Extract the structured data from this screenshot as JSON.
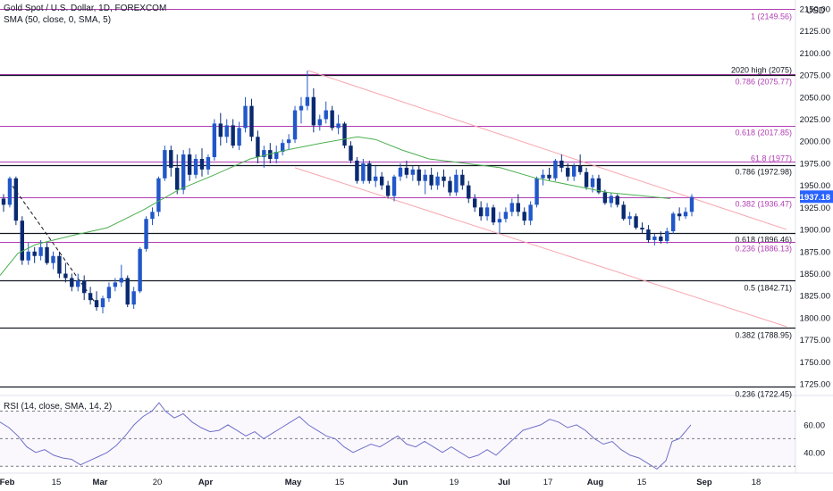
{
  "header": {
    "symbol_title": "Gold Spot / U.S. Dollar, 1D, FOREXCOM",
    "indicator_label": "SMA (50, close, 0, SMA, 5)",
    "currency": "USD"
  },
  "rsi_panel": {
    "label": "RSI (14, close, SMA, 14, 2)",
    "ticks": [
      "60.00",
      "40.00"
    ]
  },
  "colors": {
    "up_candle": "#2157c8",
    "down_candle": "#0a2a70",
    "sma": "#4caf50",
    "fib_level": "#b23eb5",
    "fib_label": "#b23eb5",
    "horizontal_level": "#131722",
    "channel": "#f7a6ae",
    "rsi": "#6f6fc9",
    "price_badge": "#2962ff"
  },
  "chart_data": {
    "type": "candlestick",
    "title": "Gold Spot / U.S. Dollar, 1D, FOREXCOM",
    "ylabel": "USD",
    "ylim": [
      1715,
      2160
    ],
    "y_ticks": [
      2150,
      2125,
      2100,
      2075,
      2050,
      2025,
      2000,
      1975,
      1950,
      1925,
      1900,
      1875,
      1850,
      1825,
      1800,
      1775,
      1750,
      1725
    ],
    "x_labels": [
      "Feb",
      "15",
      "Mar",
      "20",
      "Apr",
      "May",
      "15",
      "Jun",
      "19",
      "Jul",
      "17",
      "Aug",
      "15",
      "Sep",
      "18"
    ],
    "last_price": "1937.18",
    "candles": [
      {
        "o": 1935,
        "h": 1940,
        "l": 1920,
        "c": 1928
      },
      {
        "o": 1928,
        "h": 1960,
        "l": 1925,
        "c": 1958
      },
      {
        "o": 1958,
        "h": 1960,
        "l": 1905,
        "c": 1910
      },
      {
        "o": 1910,
        "h": 1915,
        "l": 1860,
        "c": 1865
      },
      {
        "o": 1865,
        "h": 1885,
        "l": 1860,
        "c": 1875
      },
      {
        "o": 1875,
        "h": 1880,
        "l": 1862,
        "c": 1870
      },
      {
        "o": 1870,
        "h": 1888,
        "l": 1865,
        "c": 1880
      },
      {
        "o": 1880,
        "h": 1885,
        "l": 1860,
        "c": 1862
      },
      {
        "o": 1862,
        "h": 1875,
        "l": 1855,
        "c": 1870
      },
      {
        "o": 1870,
        "h": 1875,
        "l": 1845,
        "c": 1850
      },
      {
        "o": 1850,
        "h": 1862,
        "l": 1840,
        "c": 1845
      },
      {
        "o": 1845,
        "h": 1850,
        "l": 1830,
        "c": 1835
      },
      {
        "o": 1835,
        "h": 1850,
        "l": 1830,
        "c": 1842
      },
      {
        "o": 1842,
        "h": 1848,
        "l": 1820,
        "c": 1828
      },
      {
        "o": 1828,
        "h": 1835,
        "l": 1815,
        "c": 1820
      },
      {
        "o": 1820,
        "h": 1830,
        "l": 1808,
        "c": 1812
      },
      {
        "o": 1812,
        "h": 1825,
        "l": 1805,
        "c": 1822
      },
      {
        "o": 1822,
        "h": 1840,
        "l": 1818,
        "c": 1835
      },
      {
        "o": 1835,
        "h": 1845,
        "l": 1830,
        "c": 1840
      },
      {
        "o": 1840,
        "h": 1860,
        "l": 1835,
        "c": 1845
      },
      {
        "o": 1845,
        "h": 1848,
        "l": 1812,
        "c": 1815
      },
      {
        "o": 1815,
        "h": 1835,
        "l": 1810,
        "c": 1830
      },
      {
        "o": 1830,
        "h": 1880,
        "l": 1828,
        "c": 1878
      },
      {
        "o": 1878,
        "h": 1915,
        "l": 1875,
        "c": 1912
      },
      {
        "o": 1912,
        "h": 1925,
        "l": 1905,
        "c": 1920
      },
      {
        "o": 1920,
        "h": 1960,
        "l": 1915,
        "c": 1958
      },
      {
        "o": 1958,
        "h": 1995,
        "l": 1955,
        "c": 1990
      },
      {
        "o": 1990,
        "h": 1995,
        "l": 1960,
        "c": 1970
      },
      {
        "o": 1970,
        "h": 1985,
        "l": 1940,
        "c": 1945
      },
      {
        "o": 1945,
        "h": 1990,
        "l": 1940,
        "c": 1985
      },
      {
        "o": 1985,
        "h": 1992,
        "l": 1955,
        "c": 1962
      },
      {
        "o": 1962,
        "h": 1985,
        "l": 1958,
        "c": 1980
      },
      {
        "o": 1980,
        "h": 1992,
        "l": 1960,
        "c": 1968
      },
      {
        "o": 1968,
        "h": 1985,
        "l": 1962,
        "c": 1982
      },
      {
        "o": 1982,
        "h": 2025,
        "l": 1978,
        "c": 2020
      },
      {
        "o": 2020,
        "h": 2032,
        "l": 1995,
        "c": 2005
      },
      {
        "o": 2005,
        "h": 2025,
        "l": 1998,
        "c": 2018
      },
      {
        "o": 2018,
        "h": 2025,
        "l": 1992,
        "c": 1995
      },
      {
        "o": 1995,
        "h": 2022,
        "l": 1990,
        "c": 2015
      },
      {
        "o": 2015,
        "h": 2050,
        "l": 2010,
        "c": 2040
      },
      {
        "o": 2040,
        "h": 2048,
        "l": 2000,
        "c": 2005
      },
      {
        "o": 2005,
        "h": 2012,
        "l": 1975,
        "c": 1982
      },
      {
        "o": 1982,
        "h": 1995,
        "l": 1970,
        "c": 1990
      },
      {
        "o": 1990,
        "h": 1998,
        "l": 1975,
        "c": 1980
      },
      {
        "o": 1980,
        "h": 1995,
        "l": 1975,
        "c": 1988
      },
      {
        "o": 1988,
        "h": 2002,
        "l": 1984,
        "c": 1998
      },
      {
        "o": 1998,
        "h": 2008,
        "l": 1990,
        "c": 2002
      },
      {
        "o": 2002,
        "h": 2040,
        "l": 1998,
        "c": 2035
      },
      {
        "o": 2035,
        "h": 2050,
        "l": 2020,
        "c": 2040
      },
      {
        "o": 2040,
        "h": 2080,
        "l": 2035,
        "c": 2050
      },
      {
        "o": 2050,
        "h": 2060,
        "l": 2010,
        "c": 2018
      },
      {
        "o": 2018,
        "h": 2030,
        "l": 2012,
        "c": 2025
      },
      {
        "o": 2025,
        "h": 2045,
        "l": 2020,
        "c": 2035
      },
      {
        "o": 2035,
        "h": 2040,
        "l": 2012,
        "c": 2015
      },
      {
        "o": 2015,
        "h": 2030,
        "l": 2008,
        "c": 2020
      },
      {
        "o": 2020,
        "h": 2022,
        "l": 1992,
        "c": 1995
      },
      {
        "o": 1995,
        "h": 2000,
        "l": 1975,
        "c": 1978
      },
      {
        "o": 1978,
        "h": 1982,
        "l": 1952,
        "c": 1955
      },
      {
        "o": 1955,
        "h": 1980,
        "l": 1952,
        "c": 1975
      },
      {
        "o": 1975,
        "h": 1978,
        "l": 1952,
        "c": 1955
      },
      {
        "o": 1955,
        "h": 1972,
        "l": 1948,
        "c": 1960
      },
      {
        "o": 1960,
        "h": 1965,
        "l": 1945,
        "c": 1950
      },
      {
        "o": 1950,
        "h": 1955,
        "l": 1935,
        "c": 1938
      },
      {
        "o": 1938,
        "h": 1962,
        "l": 1932,
        "c": 1960
      },
      {
        "o": 1960,
        "h": 1975,
        "l": 1955,
        "c": 1970
      },
      {
        "o": 1970,
        "h": 1978,
        "l": 1958,
        "c": 1962
      },
      {
        "o": 1962,
        "h": 1972,
        "l": 1955,
        "c": 1968
      },
      {
        "o": 1968,
        "h": 1972,
        "l": 1950,
        "c": 1955
      },
      {
        "o": 1955,
        "h": 1968,
        "l": 1940,
        "c": 1962
      },
      {
        "o": 1962,
        "h": 1970,
        "l": 1945,
        "c": 1950
      },
      {
        "o": 1950,
        "h": 1965,
        "l": 1945,
        "c": 1960
      },
      {
        "o": 1960,
        "h": 1968,
        "l": 1948,
        "c": 1955
      },
      {
        "o": 1955,
        "h": 1960,
        "l": 1938,
        "c": 1942
      },
      {
        "o": 1942,
        "h": 1968,
        "l": 1938,
        "c": 1962
      },
      {
        "o": 1962,
        "h": 1968,
        "l": 1945,
        "c": 1950
      },
      {
        "o": 1950,
        "h": 1955,
        "l": 1930,
        "c": 1935
      },
      {
        "o": 1935,
        "h": 1940,
        "l": 1920,
        "c": 1925
      },
      {
        "o": 1925,
        "h": 1932,
        "l": 1910,
        "c": 1915
      },
      {
        "o": 1915,
        "h": 1930,
        "l": 1910,
        "c": 1925
      },
      {
        "o": 1925,
        "h": 1928,
        "l": 1905,
        "c": 1908
      },
      {
        "o": 1908,
        "h": 1920,
        "l": 1895,
        "c": 1912
      },
      {
        "o": 1912,
        "h": 1925,
        "l": 1908,
        "c": 1920
      },
      {
        "o": 1920,
        "h": 1935,
        "l": 1915,
        "c": 1930
      },
      {
        "o": 1930,
        "h": 1940,
        "l": 1915,
        "c": 1920
      },
      {
        "o": 1920,
        "h": 1925,
        "l": 1905,
        "c": 1910
      },
      {
        "o": 1910,
        "h": 1932,
        "l": 1905,
        "c": 1928
      },
      {
        "o": 1928,
        "h": 1960,
        "l": 1925,
        "c": 1958
      },
      {
        "o": 1958,
        "h": 1968,
        "l": 1950,
        "c": 1962
      },
      {
        "o": 1962,
        "h": 1970,
        "l": 1955,
        "c": 1958
      },
      {
        "o": 1958,
        "h": 1980,
        "l": 1955,
        "c": 1978
      },
      {
        "o": 1978,
        "h": 1985,
        "l": 1965,
        "c": 1970
      },
      {
        "o": 1970,
        "h": 1975,
        "l": 1955,
        "c": 1960
      },
      {
        "o": 1960,
        "h": 1975,
        "l": 1955,
        "c": 1972
      },
      {
        "o": 1972,
        "h": 1985,
        "l": 1962,
        "c": 1965
      },
      {
        "o": 1965,
        "h": 1970,
        "l": 1945,
        "c": 1948
      },
      {
        "o": 1948,
        "h": 1962,
        "l": 1942,
        "c": 1958
      },
      {
        "o": 1958,
        "h": 1962,
        "l": 1940,
        "c": 1942
      },
      {
        "o": 1942,
        "h": 1945,
        "l": 1928,
        "c": 1930
      },
      {
        "o": 1930,
        "h": 1942,
        "l": 1925,
        "c": 1938
      },
      {
        "o": 1938,
        "h": 1940,
        "l": 1925,
        "c": 1928
      },
      {
        "o": 1928,
        "h": 1932,
        "l": 1910,
        "c": 1912
      },
      {
        "o": 1912,
        "h": 1920,
        "l": 1905,
        "c": 1915
      },
      {
        "o": 1915,
        "h": 1918,
        "l": 1900,
        "c": 1902
      },
      {
        "o": 1902,
        "h": 1908,
        "l": 1895,
        "c": 1900
      },
      {
        "o": 1900,
        "h": 1905,
        "l": 1885,
        "c": 1888
      },
      {
        "o": 1888,
        "h": 1895,
        "l": 1882,
        "c": 1892
      },
      {
        "o": 1892,
        "h": 1898,
        "l": 1884,
        "c": 1887
      },
      {
        "o": 1887,
        "h": 1902,
        "l": 1884,
        "c": 1898
      },
      {
        "o": 1898,
        "h": 1920,
        "l": 1895,
        "c": 1918
      },
      {
        "o": 1918,
        "h": 1925,
        "l": 1910,
        "c": 1915
      },
      {
        "o": 1915,
        "h": 1925,
        "l": 1912,
        "c": 1920
      },
      {
        "o": 1920,
        "h": 1940,
        "l": 1915,
        "c": 1937
      }
    ],
    "sma_50": [
      [
        0,
        1848
      ],
      [
        20,
        1873
      ],
      [
        40,
        1883
      ],
      [
        80,
        1893
      ],
      [
        120,
        1902
      ],
      [
        160,
        1922
      ],
      [
        200,
        1945
      ],
      [
        240,
        1962
      ],
      [
        280,
        1980
      ],
      [
        320,
        1990
      ],
      [
        360,
        1998
      ],
      [
        400,
        2005
      ],
      [
        420,
        2002
      ],
      [
        450,
        1990
      ],
      [
        480,
        1980
      ],
      [
        520,
        1975
      ],
      [
        560,
        1970
      ],
      [
        600,
        1958
      ],
      [
        640,
        1950
      ],
      [
        680,
        1942
      ],
      [
        720,
        1938
      ],
      [
        750,
        1935
      ]
    ],
    "horizontal_levels": [
      {
        "value": 2149.56,
        "label": "1 (2149.56)",
        "kind": "fib"
      },
      {
        "value": 2075.77,
        "label": "0.786 (2075.77)",
        "kind": "fib"
      },
      {
        "value": 2075,
        "label": "2020 high (2075)",
        "kind": "level"
      },
      {
        "value": 2017.85,
        "label": "0.618 (2017.85)",
        "kind": "fib"
      },
      {
        "value": 1977,
        "label": "61.8 (1977)",
        "kind": "fib"
      },
      {
        "value": 1972.98,
        "label": "0.786 (1972.98)",
        "kind": "level"
      },
      {
        "value": 1936.47,
        "label": "0.382 (1936.47)",
        "kind": "fib"
      },
      {
        "value": 1896.46,
        "label": "0.618 (1896.46)",
        "kind": "level"
      },
      {
        "value": 1886.13,
        "label": "0.236 (1886.13)",
        "kind": "fib"
      },
      {
        "value": 1842.71,
        "label": "0.5 (1842.71)",
        "kind": "level"
      },
      {
        "value": 1788.95,
        "label": "0.382 (1788.95)",
        "kind": "level"
      },
      {
        "value": 1722.45,
        "label": "0.236 (1722.45)",
        "kind": "level"
      }
    ],
    "channel": {
      "upper": {
        "from": [
          345,
          2080
        ],
        "to": [
          880,
          1900
        ]
      },
      "lower": {
        "from": [
          330,
          1970
        ],
        "to": [
          880,
          1790
        ]
      }
    },
    "dashed_trend": {
      "from": [
        10,
        1955
      ],
      "to": [
        108,
        1815
      ]
    },
    "rsi": {
      "ylim": [
        25,
        80
      ],
      "overbought": 70,
      "mid": 50,
      "oversold": 30,
      "values": [
        [
          0,
          62
        ],
        [
          10,
          58
        ],
        [
          20,
          52
        ],
        [
          30,
          44
        ],
        [
          40,
          40
        ],
        [
          50,
          42
        ],
        [
          60,
          38
        ],
        [
          70,
          36
        ],
        [
          80,
          35
        ],
        [
          90,
          31
        ],
        [
          100,
          34
        ],
        [
          110,
          37
        ],
        [
          120,
          40
        ],
        [
          130,
          45
        ],
        [
          140,
          52
        ],
        [
          150,
          60
        ],
        [
          160,
          66
        ],
        [
          170,
          70
        ],
        [
          178,
          76
        ],
        [
          185,
          70
        ],
        [
          195,
          65
        ],
        [
          205,
          68
        ],
        [
          215,
          62
        ],
        [
          225,
          58
        ],
        [
          235,
          55
        ],
        [
          245,
          56
        ],
        [
          255,
          60
        ],
        [
          265,
          56
        ],
        [
          275,
          52
        ],
        [
          285,
          55
        ],
        [
          295,
          50
        ],
        [
          305,
          54
        ],
        [
          315,
          58
        ],
        [
          325,
          62
        ],
        [
          335,
          66
        ],
        [
          345,
          60
        ],
        [
          355,
          56
        ],
        [
          365,
          52
        ],
        [
          375,
          50
        ],
        [
          385,
          44
        ],
        [
          395,
          40
        ],
        [
          405,
          43
        ],
        [
          415,
          46
        ],
        [
          425,
          44
        ],
        [
          435,
          48
        ],
        [
          445,
          52
        ],
        [
          455,
          46
        ],
        [
          465,
          44
        ],
        [
          475,
          48
        ],
        [
          485,
          44
        ],
        [
          495,
          40
        ],
        [
          505,
          44
        ],
        [
          515,
          40
        ],
        [
          525,
          36
        ],
        [
          535,
          38
        ],
        [
          545,
          42
        ],
        [
          555,
          38
        ],
        [
          565,
          44
        ],
        [
          575,
          50
        ],
        [
          585,
          56
        ],
        [
          595,
          58
        ],
        [
          605,
          60
        ],
        [
          615,
          64
        ],
        [
          625,
          62
        ],
        [
          635,
          58
        ],
        [
          645,
          60
        ],
        [
          655,
          56
        ],
        [
          665,
          50
        ],
        [
          675,
          46
        ],
        [
          685,
          48
        ],
        [
          695,
          42
        ],
        [
          705,
          38
        ],
        [
          715,
          36
        ],
        [
          725,
          32
        ],
        [
          735,
          28
        ],
        [
          745,
          34
        ],
        [
          752,
          48
        ],
        [
          760,
          50
        ],
        [
          768,
          56
        ],
        [
          773,
          60
        ]
      ]
    }
  }
}
